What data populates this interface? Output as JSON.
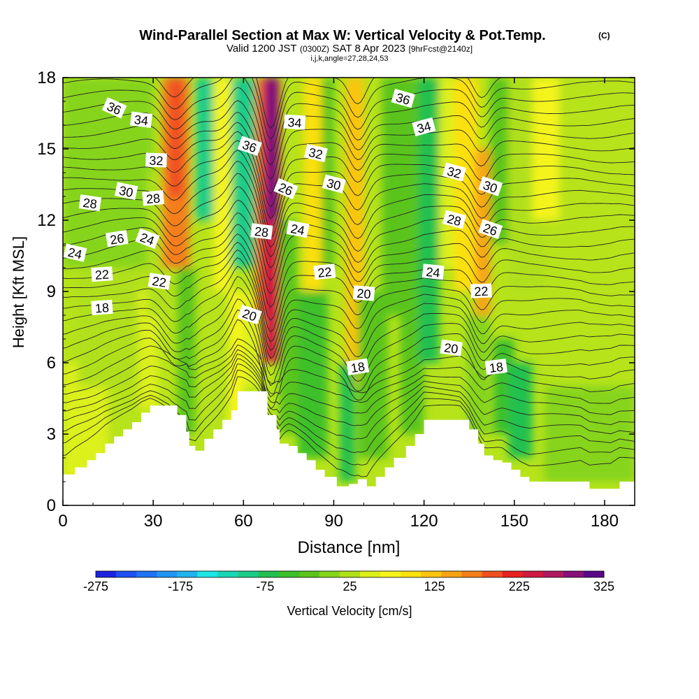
{
  "chart_data": {
    "type": "contour",
    "title_main": "Wind-Parallel Section at Max W: Vertical Velocity & Pot.Temp.",
    "title_mark": "(C)",
    "subtitle_a": "Valid 1200 JST",
    "subtitle_b": "(0300Z)",
    "subtitle_c": "SAT 8 Apr 2023",
    "subtitle_d": "[9hrFcst@2140z]",
    "subtitle2": "i,j,k,angle=27,28,24,53",
    "xlabel": "Distance [nm]",
    "ylabel": "Height [Kft MSL]",
    "xlim": [
      0,
      190
    ],
    "ylim": [
      0,
      18
    ],
    "xticks": [
      "0",
      "30",
      "60",
      "90",
      "120",
      "150",
      "180"
    ],
    "yticks": [
      "0",
      "3",
      "6",
      "9",
      "12",
      "15",
      "18"
    ],
    "colorbar_label": "Vertical Velocity [cm/s]",
    "colorbar_ticks": [
      "-275",
      "-175",
      "-75",
      "25",
      "125",
      "225",
      "325"
    ],
    "colorbar_colors": [
      "#1d22e0",
      "#1f4ff2",
      "#1f72f5",
      "#2094f4",
      "#20b4ef",
      "#1ee6e6",
      "#16d6b6",
      "#1dcc88",
      "#22c050",
      "#3cc02a",
      "#5ac41a",
      "#86d41a",
      "#b0e01a",
      "#dcf01a",
      "#f4f41a",
      "#fde010",
      "#fcc40e",
      "#f8a412",
      "#f47e1a",
      "#f05020",
      "#e82020",
      "#d01840",
      "#b01860",
      "#881078",
      "#5a0888"
    ],
    "terrain": [
      [
        0,
        1.3
      ],
      [
        1,
        1.3
      ],
      [
        4,
        1.6
      ],
      [
        8,
        1.9
      ],
      [
        11,
        2.2
      ],
      [
        14,
        2.6
      ],
      [
        17,
        2.9
      ],
      [
        20,
        3.2
      ],
      [
        23,
        3.5
      ],
      [
        26,
        3.9
      ],
      [
        29,
        4.2
      ],
      [
        35,
        4.2
      ],
      [
        38,
        3.8
      ],
      [
        41,
        3.1
      ],
      [
        42,
        2.5
      ],
      [
        44,
        2.3
      ],
      [
        47,
        2.8
      ],
      [
        50,
        3.2
      ],
      [
        53,
        3.6
      ],
      [
        56,
        4.0
      ],
      [
        58,
        4.8
      ],
      [
        66,
        4.8
      ],
      [
        68,
        3.8
      ],
      [
        71,
        3.2
      ],
      [
        72,
        2.6
      ],
      [
        75,
        2.5
      ],
      [
        78,
        2.2
      ],
      [
        81,
        1.9
      ],
      [
        84,
        1.5
      ],
      [
        87,
        1.2
      ],
      [
        91,
        0.8
      ],
      [
        95,
        0.9
      ],
      [
        98,
        1.1
      ],
      [
        101,
        0.8
      ],
      [
        104,
        1.2
      ],
      [
        107,
        1.6
      ],
      [
        110,
        2.0
      ],
      [
        114,
        2.5
      ],
      [
        117,
        3.0
      ],
      [
        120,
        3.6
      ],
      [
        132,
        3.6
      ],
      [
        135,
        3.2
      ],
      [
        138,
        2.6
      ],
      [
        140,
        2.1
      ],
      [
        143,
        1.9
      ],
      [
        146,
        1.8
      ],
      [
        149,
        1.5
      ],
      [
        152,
        1.2
      ],
      [
        155,
        1.0
      ],
      [
        172,
        1.0
      ],
      [
        175,
        0.7
      ],
      [
        182,
        0.7
      ],
      [
        185,
        1.0
      ],
      [
        190,
        1.0
      ]
    ],
    "vertical_velocity_cells": [
      {
        "x": [
          0,
          15
        ],
        "y": [
          1,
          6
        ],
        "value": 40
      },
      {
        "x": [
          5,
          25
        ],
        "y": [
          5,
          10
        ],
        "value": 20
      },
      {
        "x": [
          0,
          30
        ],
        "y": [
          10,
          18
        ],
        "value": -20
      },
      {
        "x": [
          25,
          32
        ],
        "y": [
          4,
          9
        ],
        "value": 35
      },
      {
        "x": [
          28,
          35
        ],
        "y": [
          8,
          14
        ],
        "value": 20
      },
      {
        "x": [
          33,
          42
        ],
        "y": [
          10,
          18
        ],
        "value": 150
      },
      {
        "x": [
          35,
          40
        ],
        "y": [
          13,
          18
        ],
        "value": 180
      },
      {
        "x": [
          38,
          44
        ],
        "y": [
          3,
          10
        ],
        "value": -50
      },
      {
        "x": [
          44,
          50
        ],
        "y": [
          12,
          18
        ],
        "value": -120
      },
      {
        "x": [
          50,
          56
        ],
        "y": [
          9,
          18
        ],
        "value": 60
      },
      {
        "x": [
          55,
          60
        ],
        "y": [
          3,
          9
        ],
        "value": 70
      },
      {
        "x": [
          56,
          65
        ],
        "y": [
          10,
          18
        ],
        "value": -120
      },
      {
        "x": [
          60,
          67
        ],
        "y": [
          5,
          9
        ],
        "value": 40
      },
      {
        "x": [
          64,
          68
        ],
        "y": [
          8,
          18
        ],
        "value": 150
      },
      {
        "x": [
          66,
          72
        ],
        "y": [
          6,
          18
        ],
        "value": 230
      },
      {
        "x": [
          68,
          71
        ],
        "y": [
          12,
          18
        ],
        "value": 320
      },
      {
        "x": [
          72,
          78
        ],
        "y": [
          3,
          12
        ],
        "value": -30
      },
      {
        "x": [
          78,
          88
        ],
        "y": [
          2,
          9
        ],
        "value": -60
      },
      {
        "x": [
          80,
          86
        ],
        "y": [
          9,
          18
        ],
        "value": 80
      },
      {
        "x": [
          86,
          90
        ],
        "y": [
          10,
          18
        ],
        "value": -40
      },
      {
        "x": [
          94,
          100
        ],
        "y": [
          5,
          18
        ],
        "value": 100
      },
      {
        "x": [
          92,
          97
        ],
        "y": [
          1,
          6
        ],
        "value": -80
      },
      {
        "x": [
          98,
          108
        ],
        "y": [
          2,
          9
        ],
        "value": -40
      },
      {
        "x": [
          106,
          114
        ],
        "y": [
          8,
          18
        ],
        "value": -50
      },
      {
        "x": [
          112,
          120
        ],
        "y": [
          3,
          18
        ],
        "value": -40
      },
      {
        "x": [
          118,
          125
        ],
        "y": [
          6,
          18
        ],
        "value": -80
      },
      {
        "x": [
          125,
          133
        ],
        "y": [
          10,
          18
        ],
        "value": 40
      },
      {
        "x": [
          130,
          138
        ],
        "y": [
          9,
          18
        ],
        "value": 90
      },
      {
        "x": [
          137,
          142
        ],
        "y": [
          8,
          15
        ],
        "value": 130
      },
      {
        "x": [
          134,
          142
        ],
        "y": [
          3,
          8
        ],
        "value": -20
      },
      {
        "x": [
          142,
          148
        ],
        "y": [
          11,
          18
        ],
        "value": -40
      },
      {
        "x": [
          143,
          150
        ],
        "y": [
          3,
          7
        ],
        "value": -60
      },
      {
        "x": [
          148,
          156
        ],
        "y": [
          2,
          6
        ],
        "value": -90
      },
      {
        "x": [
          148,
          160
        ],
        "y": [
          9,
          18
        ],
        "value": 20
      },
      {
        "x": [
          156,
          165
        ],
        "y": [
          12,
          18
        ],
        "value": 50
      },
      {
        "x": [
          160,
          190
        ],
        "y": [
          1,
          5
        ],
        "value": -10
      }
    ],
    "theta_contour_labels": [
      {
        "text": "36",
        "x": 17,
        "y": 16.7
      },
      {
        "text": "34",
        "x": 26,
        "y": 16.2
      },
      {
        "text": "32",
        "x": 31,
        "y": 14.5
      },
      {
        "text": "30",
        "x": 21,
        "y": 13.2
      },
      {
        "text": "28",
        "x": 9,
        "y": 12.7
      },
      {
        "text": "28",
        "x": 30,
        "y": 12.9
      },
      {
        "text": "26",
        "x": 18,
        "y": 11.2
      },
      {
        "text": "24",
        "x": 4,
        "y": 10.6
      },
      {
        "text": "24",
        "x": 28,
        "y": 11.2
      },
      {
        "text": "22",
        "x": 13,
        "y": 9.7
      },
      {
        "text": "22",
        "x": 32,
        "y": 9.4
      },
      {
        "text": "18",
        "x": 13,
        "y": 8.3
      },
      {
        "text": "36",
        "x": 62,
        "y": 15.1
      },
      {
        "text": "34",
        "x": 77,
        "y": 16.1
      },
      {
        "text": "32",
        "x": 84,
        "y": 14.8
      },
      {
        "text": "30",
        "x": 90,
        "y": 13.5
      },
      {
        "text": "26",
        "x": 74,
        "y": 13.3
      },
      {
        "text": "24",
        "x": 78,
        "y": 11.6
      },
      {
        "text": "28",
        "x": 66,
        "y": 11.5
      },
      {
        "text": "22",
        "x": 87,
        "y": 9.8
      },
      {
        "text": "20",
        "x": 62,
        "y": 8.0
      },
      {
        "text": "20",
        "x": 100,
        "y": 8.9
      },
      {
        "text": "18",
        "x": 98,
        "y": 5.8
      },
      {
        "text": "36",
        "x": 113,
        "y": 17.1
      },
      {
        "text": "34",
        "x": 120,
        "y": 15.9
      },
      {
        "text": "32",
        "x": 130,
        "y": 14.0
      },
      {
        "text": "30",
        "x": 142,
        "y": 13.4
      },
      {
        "text": "28",
        "x": 130,
        "y": 12.0
      },
      {
        "text": "26",
        "x": 142,
        "y": 11.6
      },
      {
        "text": "24",
        "x": 123,
        "y": 9.8
      },
      {
        "text": "22",
        "x": 139,
        "y": 9.0
      },
      {
        "text": "20",
        "x": 129,
        "y": 6.6
      },
      {
        "text": "18",
        "x": 144,
        "y": 5.8
      }
    ]
  }
}
